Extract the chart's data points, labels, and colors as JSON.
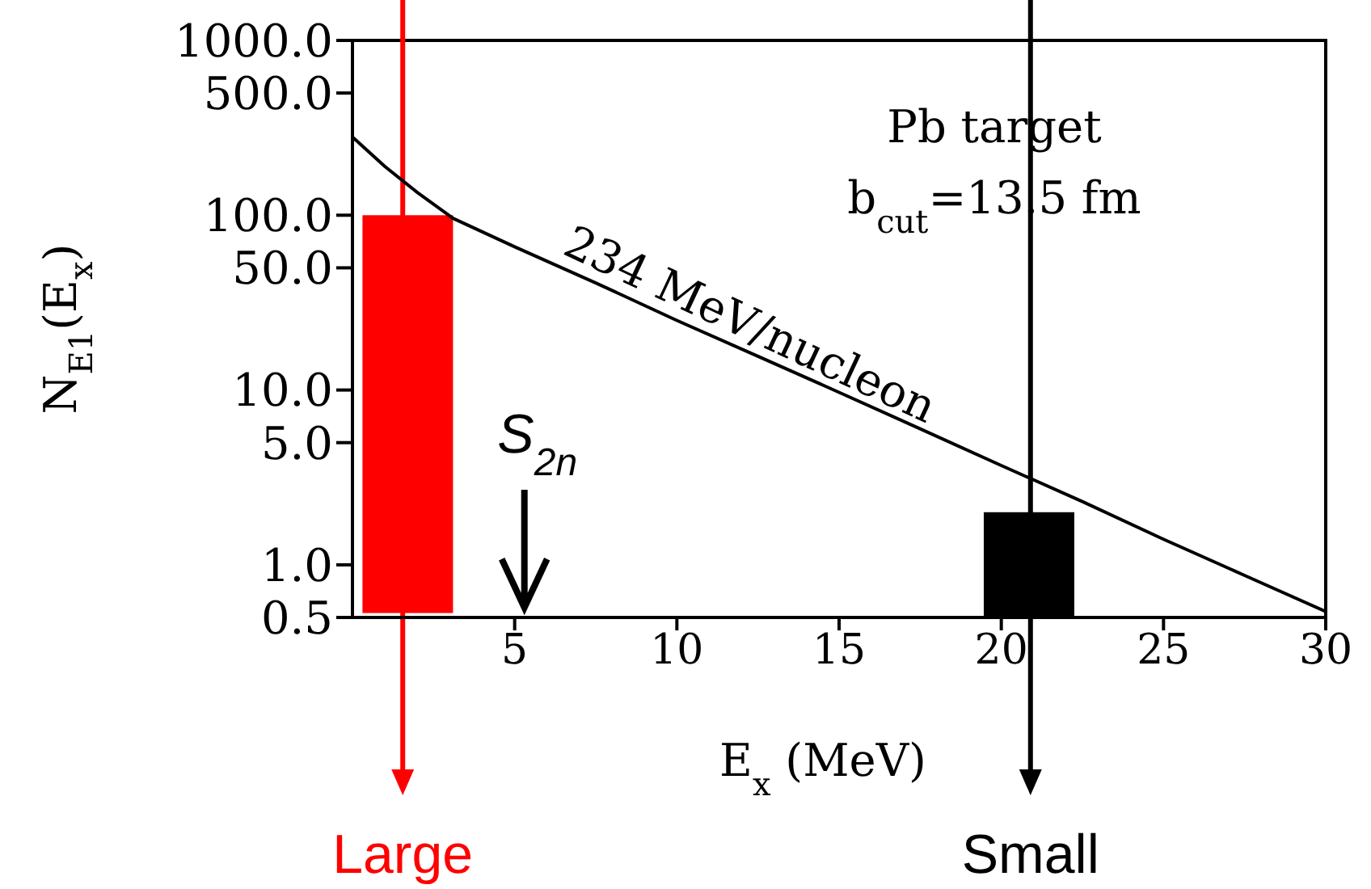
{
  "chart_data": {
    "type": "line",
    "xlabel": "E$_{x}$ (MeV)",
    "ylabel": "N$_{E1}$(E$_{x}$)",
    "x": [
      0,
      1,
      2,
      3.1,
      5,
      7.5,
      10,
      12.5,
      15,
      17.5,
      20,
      22.5,
      25,
      27.5,
      30
    ],
    "series": [
      {
        "color": "#000000",
        "values": [
          280,
          190,
          135,
          96,
          66,
          41,
          25,
          15.6,
          9.7,
          6,
          3.7,
          2.3,
          1.4,
          0.87,
          0.54
        ]
      },
      {
        "type": "bar",
        "x": [
          1.7,
          20.85
        ],
        "base": [
          0.53,
          0.5
        ],
        "values": [
          99.47,
          1.5
        ],
        "colors": [
          "#ff0000",
          "#000000"
        ]
      }
    ],
    "log": "y",
    "xlim": [
      0,
      30
    ],
    "xticks": [
      5,
      10,
      15,
      20,
      25,
      30
    ],
    "ylim": [
      0.5,
      1000
    ],
    "yticks": [
      {
        "value": 0.5,
        "label": "0.5"
      },
      {
        "value": 1,
        "label": "1.0"
      },
      {
        "value": 5,
        "label": "5.0"
      },
      {
        "value": 10,
        "label": "10.0"
      },
      {
        "value": 50,
        "label": "50.0"
      },
      {
        "value": 100,
        "label": "100.0"
      },
      {
        "value": 500,
        "label": "500.0"
      },
      {
        "value": 1000,
        "label": "1000.0"
      }
    ],
    "marker": "none",
    "line_style": "solid",
    "annotations": [
      "Pb target",
      "b$_{cut}$=13.5 fm",
      "234 MeV/nucleon",
      "S$_{2n}$",
      "Large",
      "Small"
    ]
  }
}
